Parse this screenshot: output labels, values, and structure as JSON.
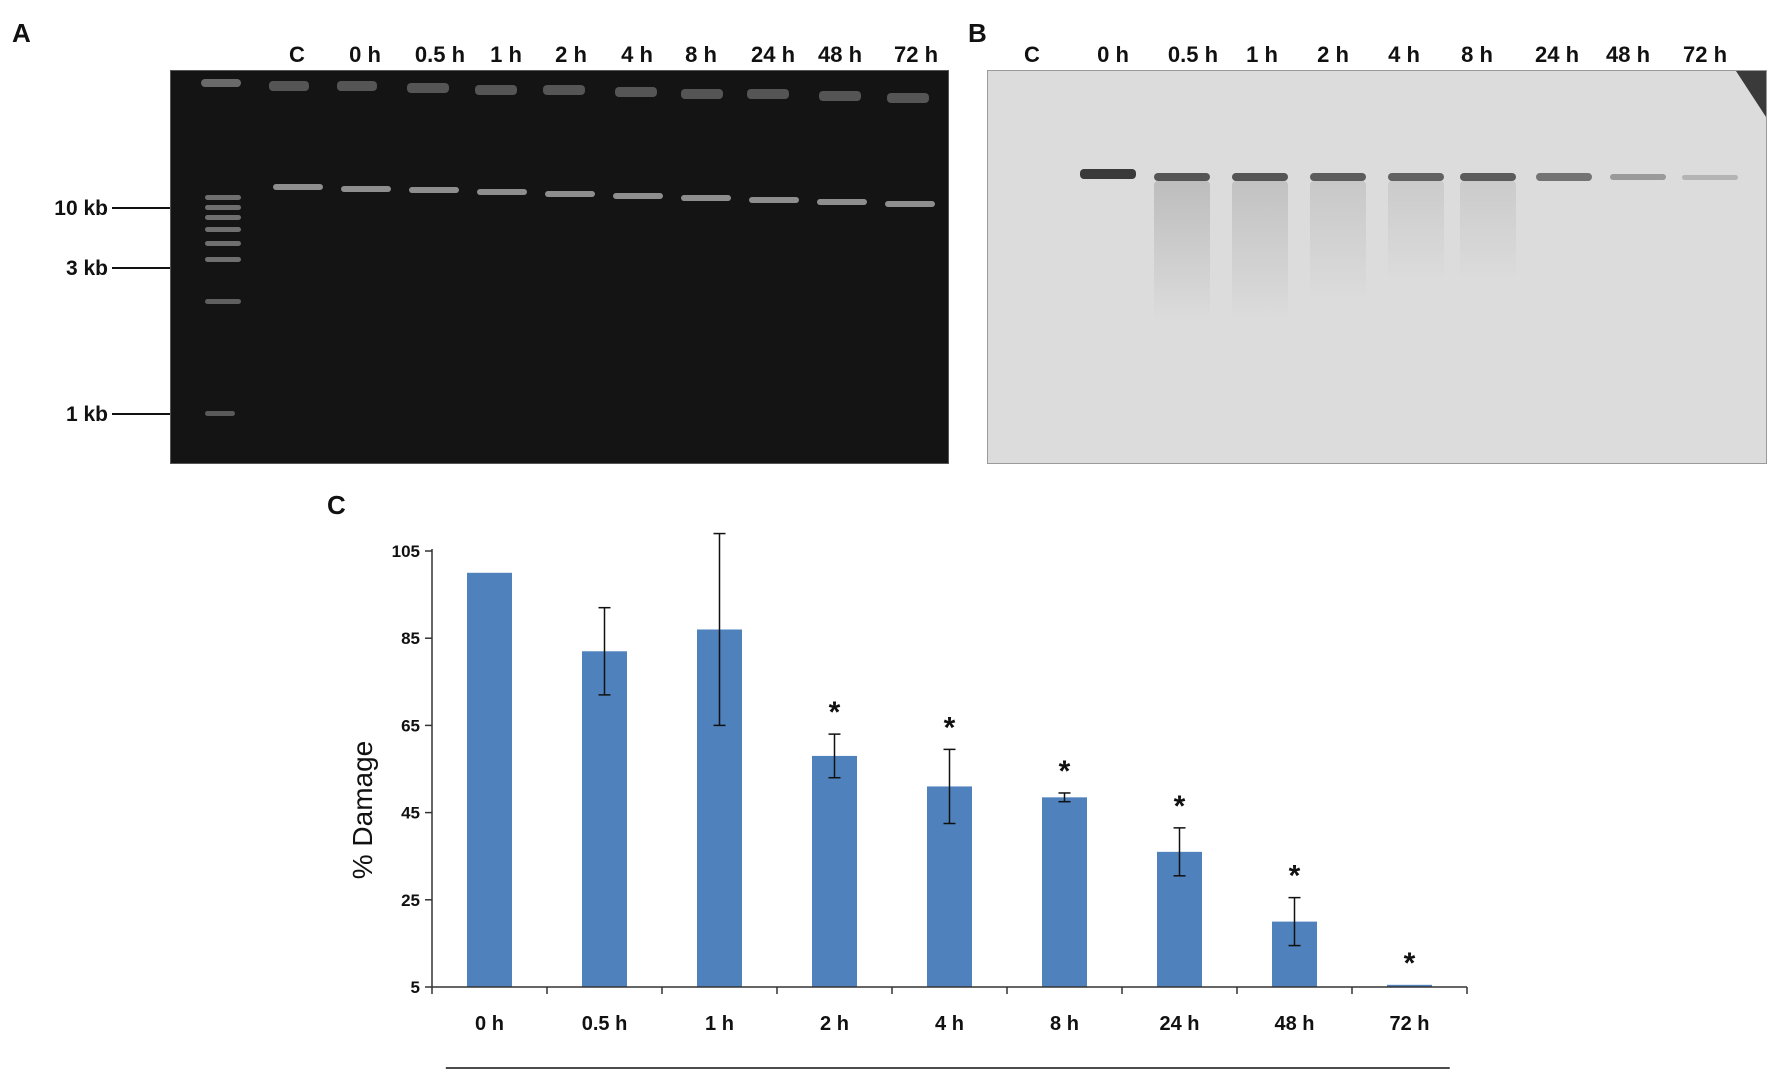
{
  "panel_a": {
    "letter": "A",
    "lanes": [
      "C",
      "0 h",
      "0.5 h",
      "1 h",
      "2 h",
      "4 h",
      "8 h",
      "24 h",
      "48 h",
      "72 h"
    ],
    "ladder": [
      "10 kb",
      "3 kb",
      "1 kb"
    ]
  },
  "panel_b": {
    "letter": "B",
    "lanes": [
      "C",
      "0 h",
      "0.5 h",
      "1 h",
      "2 h",
      "4 h",
      "8 h",
      "24 h",
      "48 h",
      "72 h"
    ]
  },
  "panel_c": {
    "letter": "C"
  },
  "chart_data": {
    "type": "bar",
    "title": "",
    "xlabel": "",
    "ylabel": "% Damage",
    "ylim": [
      5,
      105
    ],
    "yticks": [
      5,
      25,
      45,
      65,
      85,
      105
    ],
    "categories": [
      "0 h",
      "0.5 h",
      "1 h",
      "2 h",
      "4 h",
      "8 h",
      "24 h",
      "48 h",
      "72 h"
    ],
    "values": [
      100,
      82,
      87,
      58,
      51,
      48.5,
      36,
      20,
      5.5
    ],
    "error": [
      0,
      10,
      22,
      5,
      8.5,
      1,
      5.5,
      5.5,
      0
    ],
    "significant": [
      false,
      false,
      false,
      true,
      true,
      true,
      true,
      true,
      true
    ],
    "significance_marker": "*",
    "bar_color": "#4f81bd",
    "grid": false
  }
}
